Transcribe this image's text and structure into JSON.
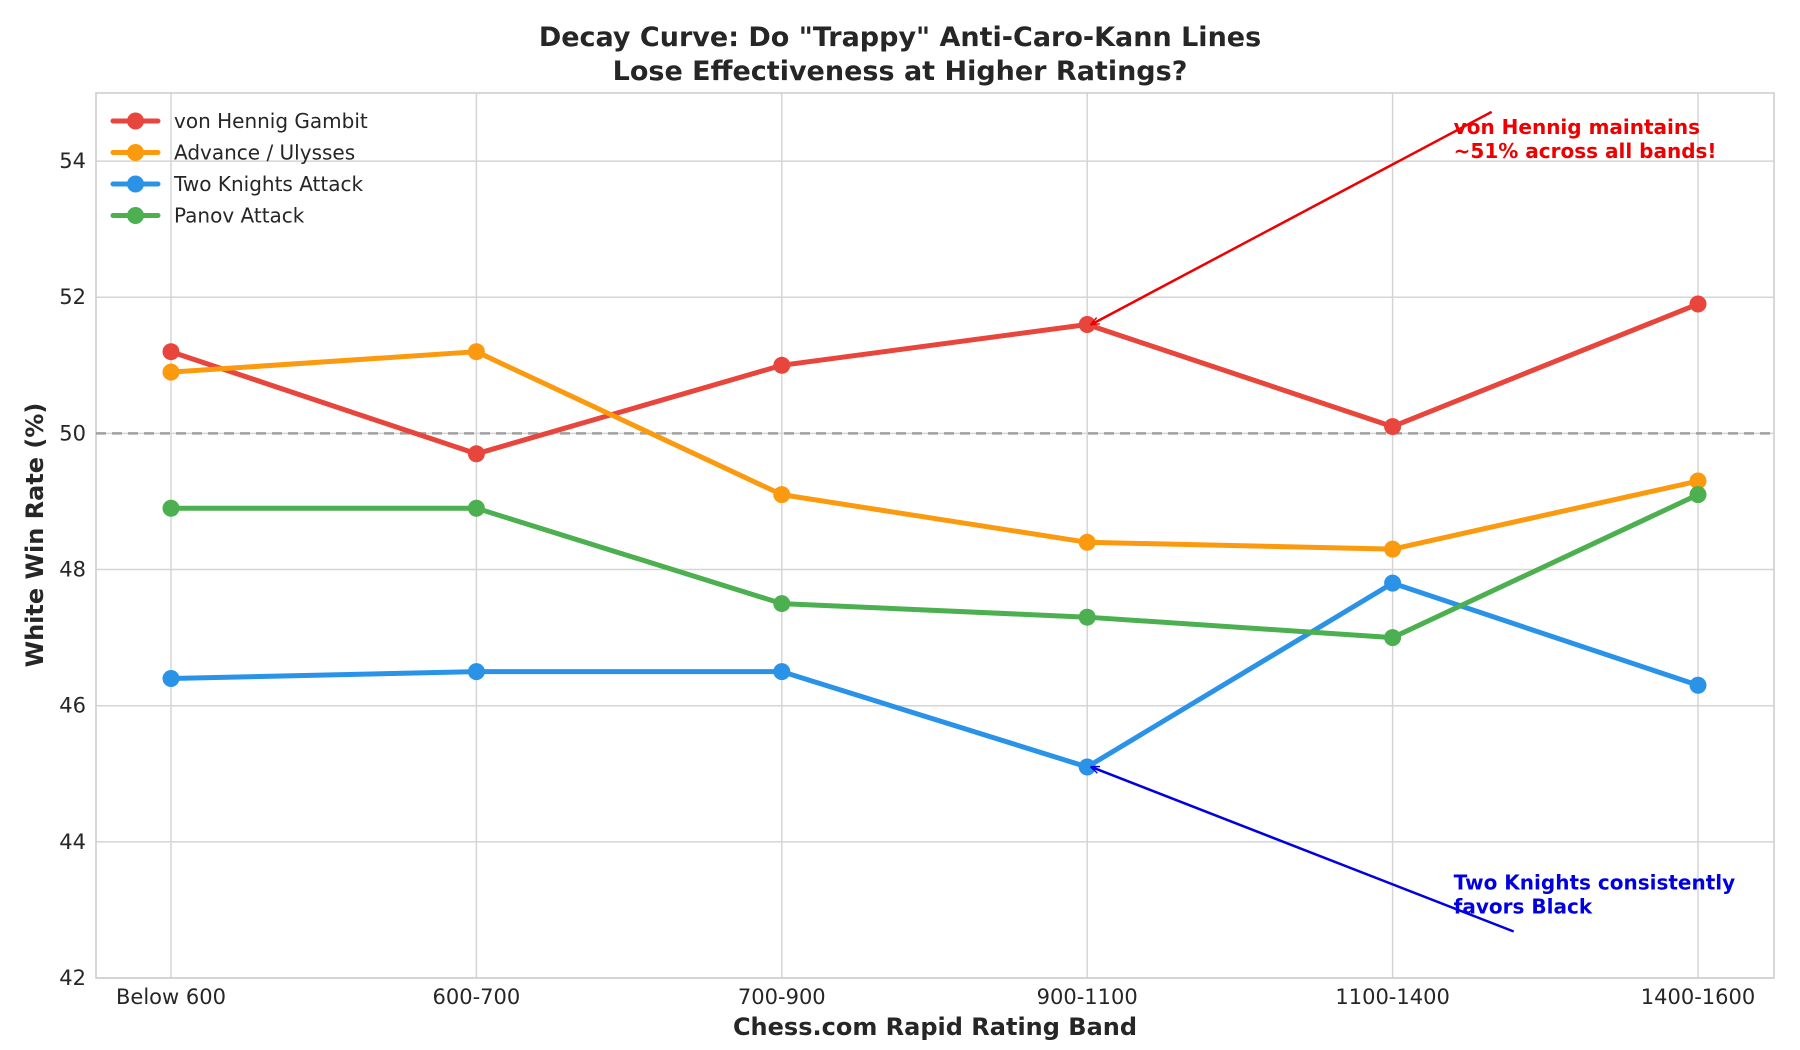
{
  "chart_data": {
    "type": "line",
    "title": [
      "Decay Curve: Do \"Trappy\" Anti-Caro-Kann Lines",
      "Lose Effectiveness at Higher Ratings?"
    ],
    "xlabel": "Chess.com Rapid Rating Band",
    "ylabel": "White Win Rate (%)",
    "categories": [
      "Below 600",
      "600-700",
      "700-900",
      "900-1100",
      "1100-1400",
      "1400-1600"
    ],
    "ylim": [
      42,
      55
    ],
    "yticks": [
      42,
      44,
      46,
      48,
      50,
      52,
      54
    ],
    "grid": true,
    "legend_position": "top-left",
    "reference_line": {
      "y": 50,
      "color": "#a0a0a0",
      "style": "dashed"
    },
    "series": [
      {
        "name": "von Hennig Gambit",
        "color": "#e8453c",
        "values": [
          51.2,
          49.7,
          51.0,
          51.6,
          50.1,
          51.9
        ]
      },
      {
        "name": "Advance / Ulysses",
        "color": "#fb9a0e",
        "values": [
          50.9,
          51.2,
          49.1,
          48.4,
          48.3,
          49.3
        ]
      },
      {
        "name": "Two Knights Attack",
        "color": "#2a93e8",
        "values": [
          46.4,
          46.5,
          46.5,
          45.1,
          47.8,
          46.3
        ]
      },
      {
        "name": "Panov Attack",
        "color": "#4caf50",
        "values": [
          48.9,
          48.9,
          47.5,
          47.3,
          47.0,
          49.1
        ]
      }
    ],
    "annotations": [
      {
        "lines": [
          "von Hennig maintains",
          "~51% across all bands!"
        ],
        "color": "#ee0000",
        "target": {
          "category": "900-1100",
          "value": 51.6
        },
        "text_anchor": {
          "category_index": 4.2,
          "value": 54.4
        }
      },
      {
        "lines": [
          "Two Knights consistently",
          "favors Black"
        ],
        "color": "#0000e0",
        "target": {
          "category": "900-1100",
          "value": 45.1
        },
        "text_anchor": {
          "category_index": 4.2,
          "value": 43.3
        }
      }
    ]
  }
}
